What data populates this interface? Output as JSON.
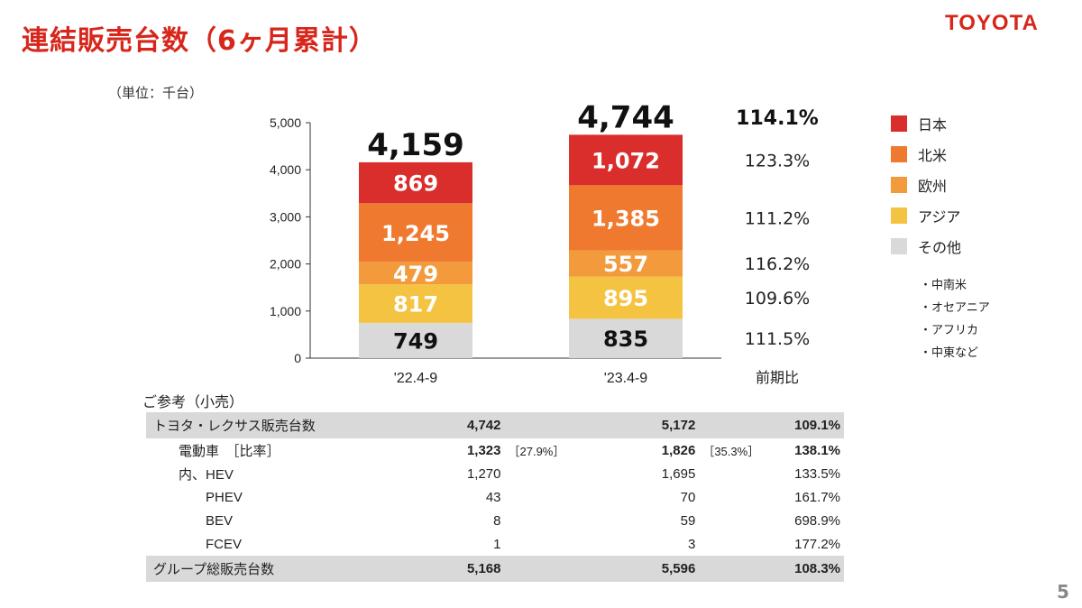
{
  "title": "連結販売台数（6ヶ月累計）",
  "logo": "TOYOTA",
  "unit_label": "（単位：千台）",
  "page_number": "5",
  "chart_data": {
    "type": "bar",
    "stacked": true,
    "categories": [
      "'22.4-9",
      "'23.4-9"
    ],
    "ylim": [
      0,
      5000
    ],
    "yticks": [
      0,
      1000,
      2000,
      3000,
      4000,
      5000
    ],
    "ytick_labels": [
      "0",
      "1,000",
      "2,000",
      "3,000",
      "4,000",
      "5,000"
    ],
    "series": [
      {
        "name": "その他",
        "color": "#d9d9d9",
        "text_color": "#111111",
        "values": [
          749,
          835
        ],
        "labels": [
          "749",
          "835"
        ]
      },
      {
        "name": "アジア",
        "color": "#f5c342",
        "text_color": "#ffffff",
        "values": [
          817,
          895
        ],
        "labels": [
          "817",
          "895"
        ]
      },
      {
        "name": "欧州",
        "color": "#f29a3c",
        "text_color": "#ffffff",
        "values": [
          479,
          557
        ],
        "labels": [
          "479",
          "557"
        ]
      },
      {
        "name": "北米",
        "color": "#ef7a2f",
        "text_color": "#ffffff",
        "values": [
          1245,
          1385
        ],
        "labels": [
          "1,245",
          "1,385"
        ]
      },
      {
        "name": "日本",
        "color": "#d92e2b",
        "text_color": "#ffffff",
        "values": [
          869,
          1072
        ],
        "labels": [
          "869",
          "1,072"
        ]
      }
    ],
    "totals": [
      4159,
      4744
    ],
    "total_labels": [
      "4,159",
      "4,744"
    ],
    "yoy": {
      "header": "前期比",
      "total": "114.1%",
      "series": {
        "日本": "123.3%",
        "北米": "111.2%",
        "欧州": "116.2%",
        "アジア": "109.6%",
        "その他": "111.5%"
      }
    }
  },
  "legend": {
    "items": [
      {
        "label": "日本",
        "color": "#d92e2b"
      },
      {
        "label": "北米",
        "color": "#ef7a2f"
      },
      {
        "label": "欧州",
        "color": "#f29a3c"
      },
      {
        "label": "アジア",
        "color": "#f5c342"
      },
      {
        "label": "その他",
        "color": "#d9d9d9"
      }
    ],
    "sub_items": [
      "・中南米",
      "・オセアニア",
      "・アフリカ",
      "・中東など"
    ]
  },
  "reference": {
    "title": "ご参考（小売）",
    "rows": [
      {
        "label": "トヨタ・レクサス販売台数",
        "v1": "4,742",
        "r1": "",
        "v2": "5,172",
        "r2": "",
        "yoy": "109.1%",
        "highlight": true,
        "bold": true,
        "indent": 0
      },
      {
        "label": "電動車　［比率］",
        "v1": "1,323",
        "r1": "［27.9%］",
        "v2": "1,826",
        "r2": "［35.3%］",
        "yoy": "138.1%",
        "highlight": false,
        "bold": true,
        "indent": 1
      },
      {
        "label": "内、HEV",
        "v1": "1,270",
        "r1": "",
        "v2": "1,695",
        "r2": "",
        "yoy": "133.5%",
        "highlight": false,
        "bold": false,
        "indent": 1
      },
      {
        "label": "PHEV",
        "v1": "43",
        "r1": "",
        "v2": "70",
        "r2": "",
        "yoy": "161.7%",
        "highlight": false,
        "bold": false,
        "indent": 2
      },
      {
        "label": "BEV",
        "v1": "8",
        "r1": "",
        "v2": "59",
        "r2": "",
        "yoy": "698.9%",
        "highlight": false,
        "bold": false,
        "indent": 2
      },
      {
        "label": "FCEV",
        "v1": "1",
        "r1": "",
        "v2": "3",
        "r2": "",
        "yoy": "177.2%",
        "highlight": false,
        "bold": false,
        "indent": 2
      },
      {
        "label": "グループ総販売台数",
        "v1": "5,168",
        "r1": "",
        "v2": "5,596",
        "r2": "",
        "yoy": "108.3%",
        "highlight": true,
        "bold": true,
        "indent": 0
      }
    ]
  }
}
